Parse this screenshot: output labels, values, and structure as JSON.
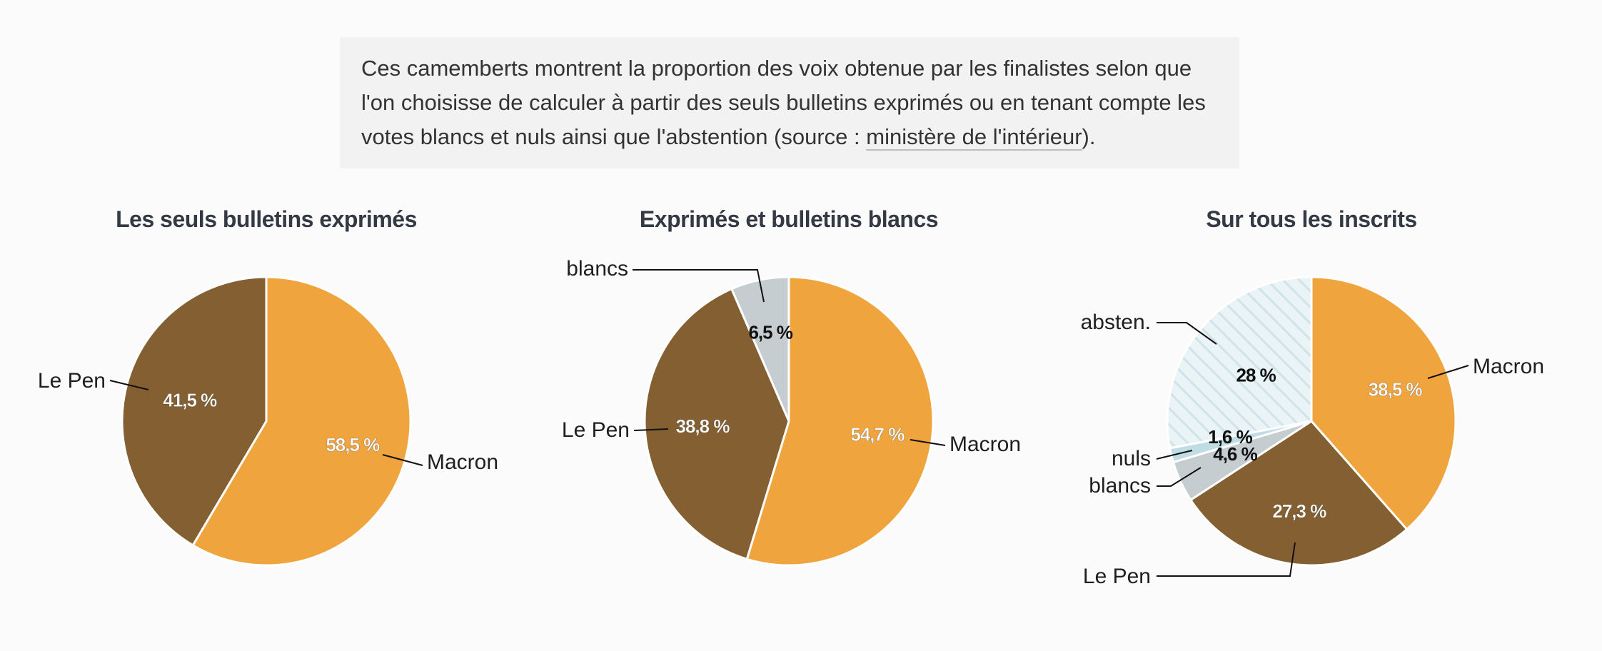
{
  "intro": {
    "text_before_link": "Ces camemberts montrent la proportion des voix obtenue par les finalistes selon que l'on choisisse de calculer à partir des seuls bulletins exprimés ou en tenant compte les votes blancs et nuls ainsi que l'abstention (source : ",
    "link_text": "ministère de l'intérieur",
    "text_after_link": ")."
  },
  "colors": {
    "macron": "#f0a43e",
    "lepen": "#845f31",
    "blancs": "#c5cdd0",
    "nuls": "#c0dde4",
    "absten_bg": "#eaf3f5",
    "absten_stripe": "#cfe3e8",
    "label_dark": "#111111",
    "label_light": "#ffffff",
    "page_bg": "#fbfbfc",
    "box_bg": "#f2f2f3"
  },
  "chart_data": [
    {
      "type": "pie",
      "title": "Les seuls bulletins exprimés",
      "slices": [
        {
          "name": "Macron",
          "value": 58.5,
          "label": "58,5 %",
          "color_key": "macron"
        },
        {
          "name": "Le Pen",
          "value": 41.5,
          "label": "41,5 %",
          "color_key": "lepen"
        }
      ]
    },
    {
      "type": "pie",
      "title": "Exprimés et bulletins blancs",
      "slices": [
        {
          "name": "Macron",
          "value": 54.7,
          "label": "54,7 %",
          "color_key": "macron"
        },
        {
          "name": "Le Pen",
          "value": 38.8,
          "label": "38,8 %",
          "color_key": "lepen"
        },
        {
          "name": "blancs",
          "value": 6.5,
          "label": "6,5 %",
          "color_key": "blancs"
        }
      ]
    },
    {
      "type": "pie",
      "title": "Sur tous les inscrits",
      "slices": [
        {
          "name": "Macron",
          "value": 38.5,
          "label": "38,5 %",
          "color_key": "macron"
        },
        {
          "name": "Le Pen",
          "value": 27.3,
          "label": "27,3 %",
          "color_key": "lepen"
        },
        {
          "name": "blancs",
          "value": 4.6,
          "label": "4,6 %",
          "color_key": "blancs"
        },
        {
          "name": "nuls",
          "value": 1.6,
          "label": "1,6 %",
          "color_key": "nuls"
        },
        {
          "name": "absten.",
          "value": 28,
          "label": "28 %",
          "color_key": "absten"
        }
      ]
    }
  ]
}
